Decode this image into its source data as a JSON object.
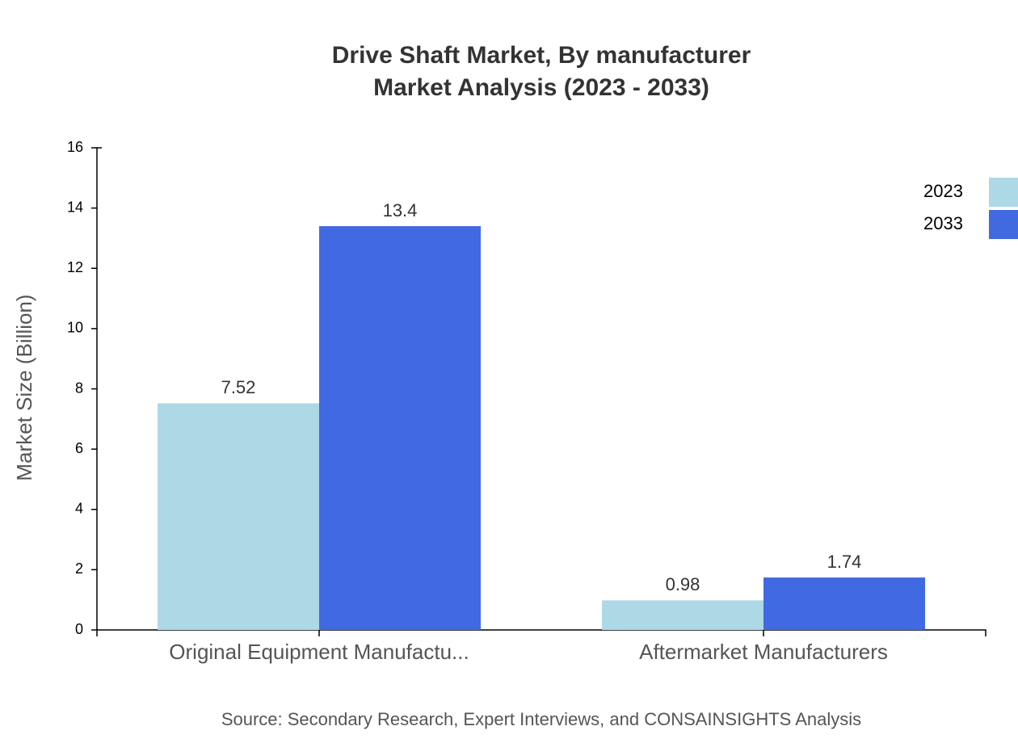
{
  "chart_data": {
    "type": "bar",
    "title": "Drive Shaft Market, By manufacturer",
    "subtitle": "Market Analysis (2023 - 2033)",
    "y_label": "Market Size (Billion)",
    "source": "Source: Secondary Research, Expert Interviews, and CONSAINSIGHTS Analysis",
    "categories": [
      "Original Equipment Manufactu...",
      "Aftermarket Manufacturers"
    ],
    "series": [
      {
        "name": "2023",
        "color": "#add8e6",
        "values": [
          7.52,
          0.98
        ]
      },
      {
        "name": "2033",
        "color": "#4169e1",
        "values": [
          13.4,
          1.74
        ]
      }
    ],
    "ylim": [
      0,
      16
    ],
    "yticks": [
      0,
      2,
      4,
      6,
      8,
      10,
      12,
      14,
      16
    ],
    "grid": false,
    "legend": "top-right"
  }
}
